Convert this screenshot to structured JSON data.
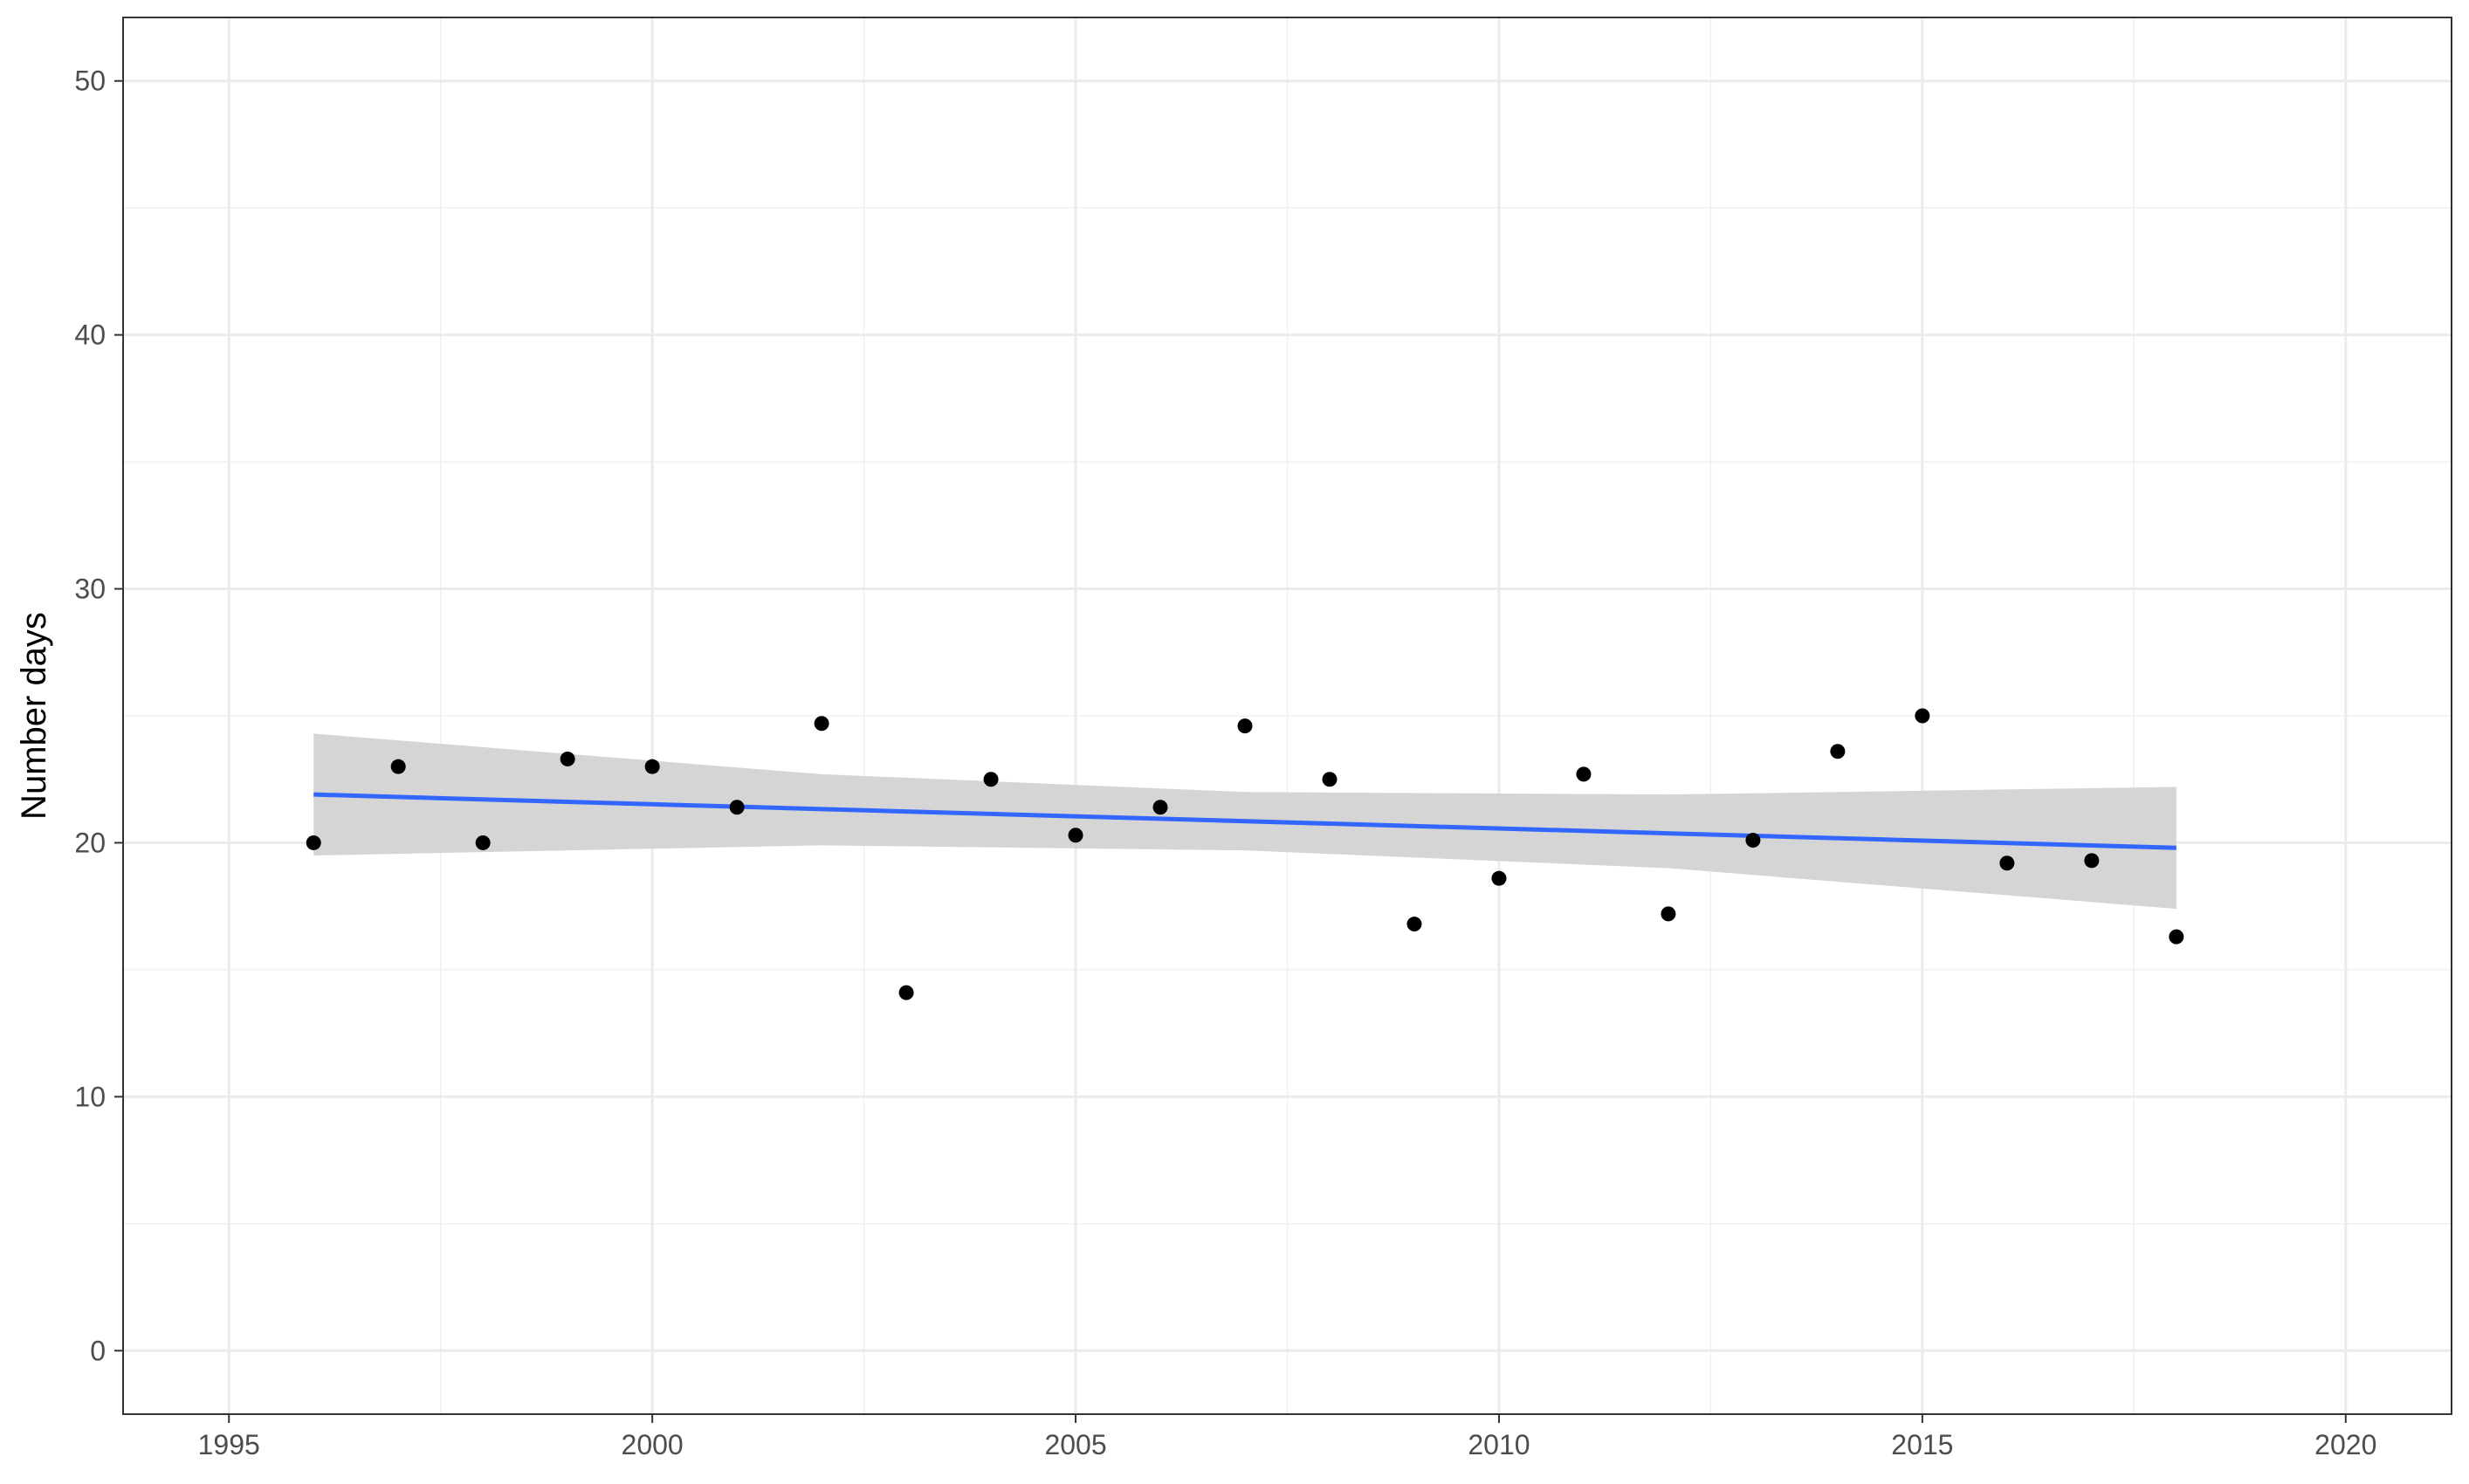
{
  "chart_data": {
    "type": "scatter",
    "title": "",
    "xlabel": "",
    "ylabel": "Number days",
    "xlim": [
      1993.75,
      2021.25
    ],
    "ylim": [
      -2.5,
      52.5
    ],
    "x_ticks": [
      1995,
      2000,
      2005,
      2010,
      2015,
      2020
    ],
    "y_ticks": [
      0,
      10,
      20,
      30,
      40,
      50
    ],
    "x_tick_labels": [
      "1995",
      "2000",
      "2005",
      "2010",
      "2015",
      "2020"
    ],
    "y_tick_labels": [
      "0",
      "10",
      "20",
      "30",
      "40",
      "50"
    ],
    "grid": true,
    "series": [
      {
        "type": "scatter",
        "color": "#000000",
        "x": [
          1996,
          1997,
          1998,
          1999,
          2000,
          2001,
          2002,
          2003,
          2004,
          2005,
          2006,
          2007,
          2008,
          2009,
          2010,
          2011,
          2012,
          2013,
          2014,
          2015,
          2016,
          2017,
          2018
        ],
        "y": [
          20.0,
          23.0,
          20.0,
          23.3,
          23.0,
          21.4,
          24.7,
          14.1,
          22.5,
          20.3,
          21.4,
          24.6,
          22.5,
          16.8,
          18.6,
          22.7,
          17.2,
          20.1,
          23.6,
          25.0,
          19.2,
          19.3,
          16.3
        ]
      },
      {
        "type": "line",
        "color": "#3366ff",
        "x": [
          1996,
          2018
        ],
        "y": [
          21.9,
          19.8
        ]
      },
      {
        "type": "area",
        "color": "#d3d3d3",
        "x": [
          1996,
          2002,
          2007,
          2012,
          2018
        ],
        "lower": [
          19.5,
          19.9,
          19.7,
          19.0,
          17.4
        ],
        "upper": [
          24.3,
          22.7,
          22.0,
          21.9,
          22.2
        ]
      }
    ]
  }
}
